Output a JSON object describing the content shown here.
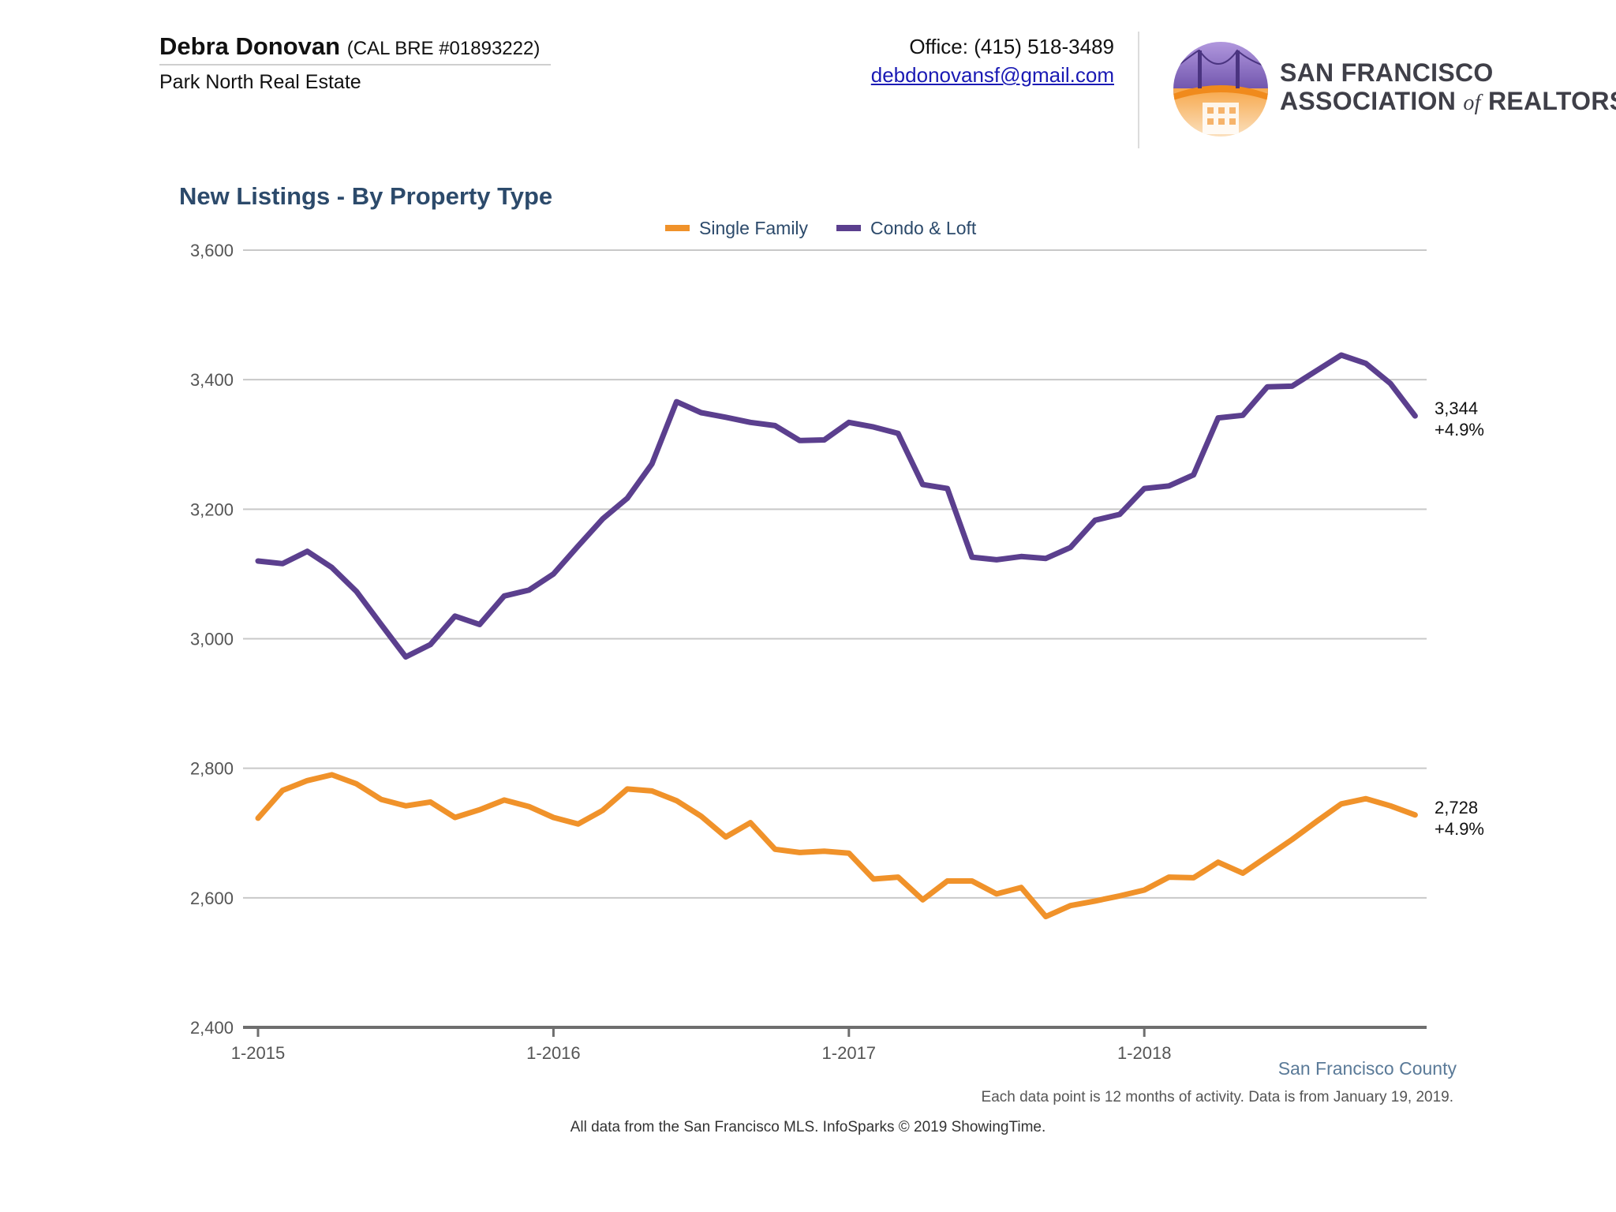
{
  "header": {
    "agent_name": "Debra Donovan",
    "agent_license": "(CAL BRE #01893222)",
    "agent_company": "Park North Real Estate",
    "office_phone": "Office: (415) 518-3489",
    "email": "debdonovansf@gmail.com"
  },
  "logo": {
    "line1": "SAN FRANCISCO",
    "line2_prefix": "ASSOCIATION",
    "line2_of": "of",
    "line2_suffix": "REALTORS",
    "registered_mark": "®"
  },
  "footer": {
    "region": "San Francisco County",
    "data_note": "Each data point is 12 months of activity. Data is from January 19, 2019.",
    "source_note": "All data from the San Francisco MLS. InfoSparks © 2019 ShowingTime."
  },
  "colors": {
    "single_family": "#f0922a",
    "condo_loft": "#5b3f8e",
    "title": "#2c4a6b",
    "legend_text": "#2c4a6b",
    "grid": "#c8c8c8",
    "axis": "#6e6e6e",
    "tick_text": "#555555"
  },
  "chart_data": {
    "type": "line",
    "title": "New Listings - By Property Type",
    "xlabel": "",
    "ylabel": "",
    "ylim": [
      2400,
      3600
    ],
    "y_ticks": [
      2400,
      2600,
      2800,
      3000,
      3200,
      3400,
      3600
    ],
    "y_tick_labels": [
      "2,400",
      "2,600",
      "2,800",
      "3,000",
      "3,200",
      "3,400",
      "3,600"
    ],
    "x_tick_labels": [
      "1-2015",
      "1-2016",
      "1-2017",
      "1-2018"
    ],
    "grid": true,
    "legend_position": "top-center",
    "x": [
      "2015-01",
      "2015-02",
      "2015-03",
      "2015-04",
      "2015-05",
      "2015-06",
      "2015-07",
      "2015-08",
      "2015-09",
      "2015-10",
      "2015-11",
      "2015-12",
      "2016-01",
      "2016-02",
      "2016-03",
      "2016-04",
      "2016-05",
      "2016-06",
      "2016-07",
      "2016-08",
      "2016-09",
      "2016-10",
      "2016-11",
      "2016-12",
      "2017-01",
      "2017-02",
      "2017-03",
      "2017-04",
      "2017-05",
      "2017-06",
      "2017-07",
      "2017-08",
      "2017-09",
      "2017-10",
      "2017-11",
      "2017-12",
      "2018-01",
      "2018-02",
      "2018-03",
      "2018-04",
      "2018-05",
      "2018-06",
      "2018-07",
      "2018-08",
      "2018-09",
      "2018-10",
      "2018-11",
      "2018-12"
    ],
    "series": [
      {
        "name": "Single Family",
        "color_key": "single_family",
        "values": [
          2723,
          2766,
          2781,
          2790,
          2776,
          2752,
          2742,
          2748,
          2724,
          2736,
          2751,
          2741,
          2724,
          2714,
          2735,
          2768,
          2765,
          2750,
          2726,
          2694,
          2716,
          2675,
          2670,
          2672,
          2669,
          2629,
          2632,
          2597,
          2626,
          2626,
          2606,
          2616,
          2571,
          2588,
          2595,
          2603,
          2612,
          2632,
          2631,
          2655,
          2638,
          2664,
          2690,
          2718,
          2745,
          2753,
          2742,
          2728
        ],
        "end_value_label": "2,728",
        "end_change_label": "+4.9%"
      },
      {
        "name": "Condo & Loft",
        "color_key": "condo_loft",
        "values": [
          3120,
          3116,
          3135,
          3110,
          3073,
          3022,
          2972,
          2991,
          3035,
          3022,
          3066,
          3075,
          3100,
          3143,
          3185,
          3217,
          3270,
          3366,
          3349,
          3342,
          3334,
          3329,
          3306,
          3307,
          3334,
          3327,
          3317,
          3238,
          3232,
          3126,
          3122,
          3127,
          3124,
          3141,
          3183,
          3192,
          3232,
          3236,
          3253,
          3341,
          3345,
          3389,
          3390,
          3414,
          3438,
          3425,
          3394,
          3344
        ],
        "end_value_label": "3,344",
        "end_change_label": "+4.9%"
      }
    ]
  }
}
